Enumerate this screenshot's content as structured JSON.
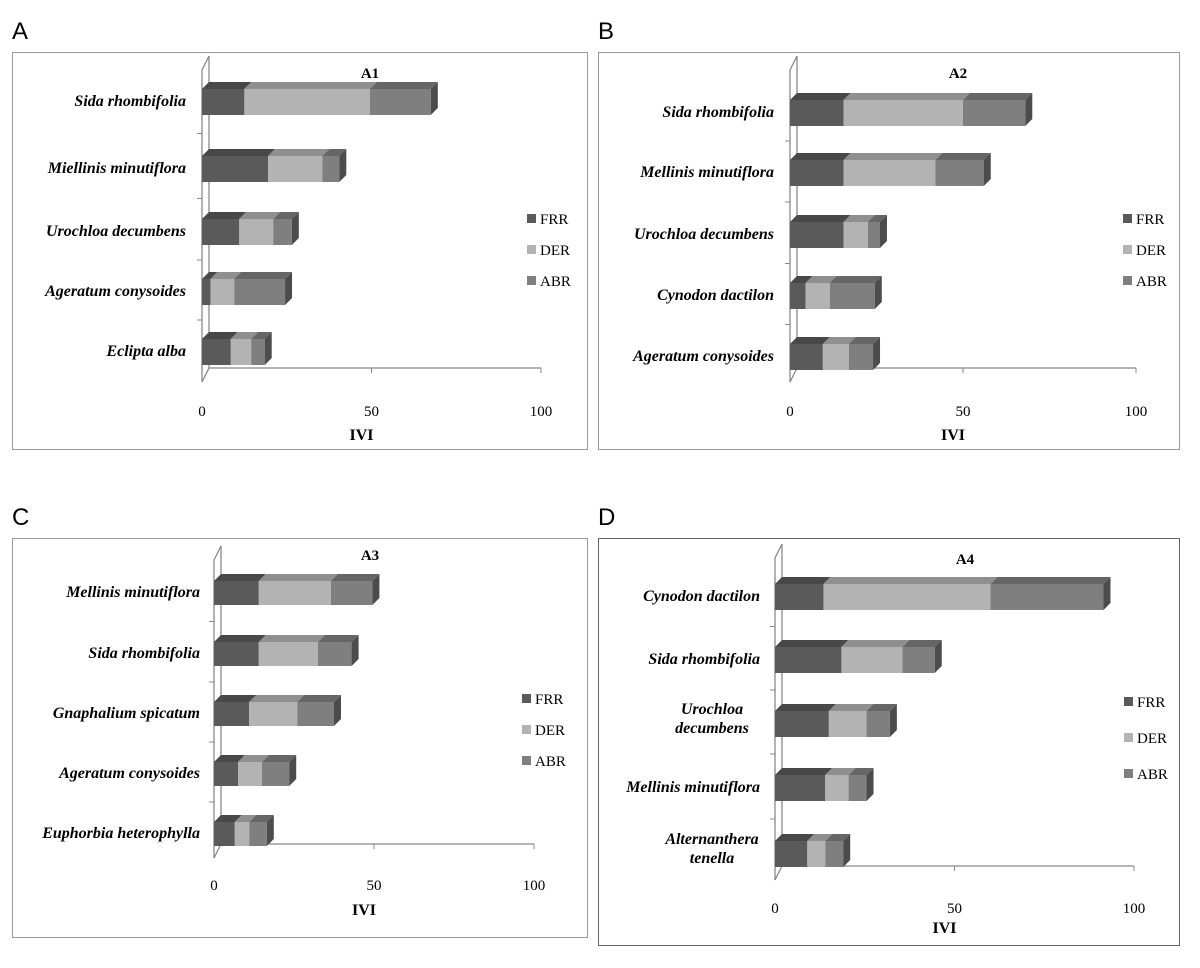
{
  "panels": [
    {
      "letter": "A"
    },
    {
      "letter": "B"
    },
    {
      "letter": "C"
    },
    {
      "letter": "D"
    }
  ],
  "colors": {
    "FRR": "#5a5a5a",
    "DER": "#b3b3b3",
    "ABR": "#7f7f7f"
  },
  "chart_data": [
    {
      "type": "bar",
      "orientation": "horizontal",
      "stacked": true,
      "title": "A1",
      "xlabel": "IVI",
      "xlim": [
        0,
        100
      ],
      "xticks": [
        "0",
        "50",
        "100"
      ],
      "legend_position": "right",
      "categories": [
        "Sida rhombifolia",
        "Miellinis minutiflora",
        "Urochloa decumbens",
        "Ageratum conysoides",
        "Eclipta alba"
      ],
      "series": [
        {
          "name": "FRR",
          "values": [
            12.5,
            19.5,
            11,
            2.5,
            8.5
          ]
        },
        {
          "name": "DER",
          "values": [
            37,
            16,
            10,
            7,
            6
          ]
        },
        {
          "name": "ABR",
          "values": [
            18,
            5,
            5.5,
            15,
            4
          ]
        }
      ]
    },
    {
      "type": "bar",
      "orientation": "horizontal",
      "stacked": true,
      "title": "A2",
      "xlabel": "IVI",
      "xlim": [
        0,
        100
      ],
      "xticks": [
        "0",
        "50",
        "100"
      ],
      "legend_position": "right",
      "categories": [
        "Sida rhombifolia",
        "Mellinis minutiflora",
        "Urochloa decumbens",
        "Cynodon dactilon",
        "Ageratum conysoides"
      ],
      "series": [
        {
          "name": "FRR",
          "values": [
            15.5,
            15.5,
            15.5,
            4.5,
            9.5
          ]
        },
        {
          "name": "DER",
          "values": [
            34.5,
            26.5,
            7,
            7,
            7.5
          ]
        },
        {
          "name": "ABR",
          "values": [
            18,
            14,
            3.5,
            13,
            7
          ]
        }
      ]
    },
    {
      "type": "bar",
      "orientation": "horizontal",
      "stacked": true,
      "title": "A3",
      "xlabel": "IVI",
      "xlim": [
        0,
        100
      ],
      "xticks": [
        "0",
        "50",
        "100"
      ],
      "legend_position": "right",
      "categories": [
        "Mellinis minutiflora",
        "Sida rhombifolia",
        "Gnaphalium spicatum",
        "Ageratum conysoides",
        "Euphorbia heterophylla"
      ],
      "series": [
        {
          "name": "FRR",
          "values": [
            14,
            14,
            11,
            7.5,
            6.5
          ]
        },
        {
          "name": "DER",
          "values": [
            22.5,
            18.5,
            15,
            7.5,
            4.5
          ]
        },
        {
          "name": "ABR",
          "values": [
            13,
            10.5,
            11.5,
            8.5,
            5.5
          ]
        }
      ]
    },
    {
      "type": "bar",
      "orientation": "horizontal",
      "stacked": true,
      "title": "A4",
      "xlabel": "IVI",
      "xlim": [
        0,
        100
      ],
      "xticks": [
        "0",
        "50",
        "100"
      ],
      "legend_position": "right",
      "categories": [
        "Cynodon dactilon",
        "Sida rhombifolia",
        "Urochloa decumbens",
        "Mellinis minutiflora",
        "Alternanthera tenella"
      ],
      "series": [
        {
          "name": "FRR",
          "values": [
            13.5,
            18.5,
            15,
            14,
            9
          ]
        },
        {
          "name": "DER",
          "values": [
            46.5,
            17,
            10.5,
            6.5,
            5
          ]
        },
        {
          "name": "ABR",
          "values": [
            31.5,
            9,
            6.5,
            5,
            5
          ]
        }
      ]
    }
  ]
}
